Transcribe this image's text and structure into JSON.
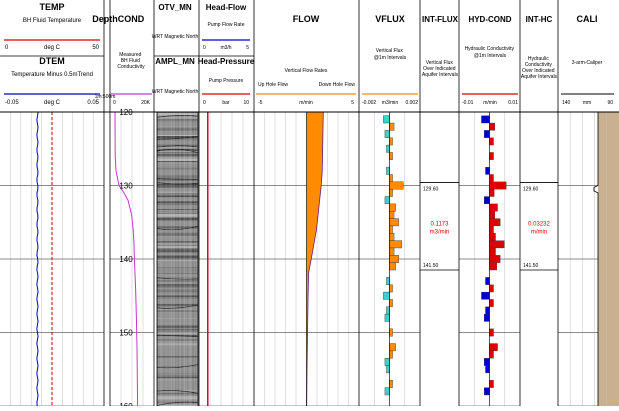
{
  "columns": {
    "temp": {
      "title": "TEMP",
      "subtitle": "BH Fluid Temperature",
      "min": "0",
      "unit": "deg C",
      "max": "50",
      "title2": "DTEM",
      "subtitle2": "Temperature Minus 0.5mTrend",
      "min2": "-0.05",
      "unit2": "deg C",
      "max2": "0.05"
    },
    "depth": {
      "title": "Depth",
      "scale": "1m:500m"
    },
    "cond": {
      "title": "COND",
      "subtitle": "Measured BH Fluid Conductivity",
      "min": "0",
      "max": "20K"
    },
    "otv": {
      "title": "OTV_MN",
      "subtitle": "WRT Magnetic North",
      "title2": "AMPL_MN",
      "subtitle2": "WRT Magnetic North"
    },
    "head": {
      "title": "Head-Flow",
      "subtitle": "Pump Flow Rate",
      "min": "0",
      "unit": "m3/h",
      "max": "5",
      "title2": "Head-Pressure",
      "subtitle2": "Pump Pressure",
      "min2": "0",
      "unit2": "bar",
      "max2": "10"
    },
    "flow": {
      "title": "FLOW",
      "subtitle": "Vertical Flow Rates",
      "left_label": "Up Hole Flow",
      "right_label": "Down Hole Flow",
      "min": "-5",
      "unit": "m/min",
      "max": "5"
    },
    "vflux": {
      "title": "VFLUX",
      "subtitle": "Vertical Flux @1m Intervals",
      "min": "-0.002",
      "unit": "m3/min",
      "max": "0.002"
    },
    "intflux": {
      "title": "INT-FLUX",
      "subtitle": "Vertical Flux Over Indicated Aquifer Intervals",
      "top": "129.60",
      "value": "0.1173",
      "unit": "m3/min",
      "bottom": "141.50"
    },
    "hydcond": {
      "title": "HYD-COND",
      "subtitle": "Hydraulic Conductivity @1m Intervals",
      "min": "-0.01",
      "unit": "m/min",
      "max": "0.01"
    },
    "inthc": {
      "title": "INT-HC",
      "subtitle": "Hydraulic Conductivity Over Indicated Aquifer Intervals",
      "top": "129.60",
      "value": "0.03232",
      "unit": "m/min",
      "bottom": "141.50"
    },
    "cali": {
      "title": "CALI",
      "subtitle": "3-arm-Caliper",
      "min": "140",
      "unit": "mm",
      "max": "90"
    }
  },
  "colors": {
    "temp": "#0000cc",
    "dtem": "#cc0000",
    "cond": "#cc33cc",
    "flow": "#ff8c00",
    "vflux_pos": "#ff8c00",
    "vflux_neg": "#40d0c8",
    "hc_pos": "#dd0000",
    "hc_neg": "#0000cc",
    "cali": "#c8b090",
    "head_flow": "#0000cc",
    "head_pressure": "#dd0000",
    "interval_text": "#dd0000"
  },
  "chart_data": {
    "type": "line",
    "depth_range": [
      120,
      160
    ],
    "depth_ticks": [
      "120",
      "130",
      "140",
      "150",
      "160"
    ],
    "aquifer_interval": [
      129.6,
      141.5
    ],
    "cond_curve": {
      "depth": [
        120,
        126,
        128,
        130,
        131,
        132,
        134,
        136,
        138,
        140,
        142,
        144,
        148,
        152,
        160
      ],
      "value": [
        1500,
        1600,
        2000,
        3500,
        6000,
        8000,
        9800,
        10600,
        11000,
        11200,
        11500,
        11800,
        12200,
        12500,
        12800
      ]
    },
    "flow_curve": {
      "depth": [
        120,
        124,
        128,
        130,
        132,
        134,
        136,
        138,
        140,
        141.5,
        142,
        145,
        150,
        155,
        160
      ],
      "value": [
        1.6,
        1.55,
        1.5,
        1.4,
        1.25,
        1.1,
        0.95,
        0.7,
        0.45,
        0.25,
        0.2,
        0.15,
        0.1,
        0.05,
        0.02
      ]
    },
    "vflux_bars": [
      {
        "depth": 121,
        "value": -0.0004
      },
      {
        "depth": 122,
        "value": 0.0003
      },
      {
        "depth": 123,
        "value": -0.0003
      },
      {
        "depth": 124,
        "value": 0.0002
      },
      {
        "depth": 125,
        "value": -0.0002
      },
      {
        "depth": 126,
        "value": 0.0002
      },
      {
        "depth": 128,
        "value": -0.0002
      },
      {
        "depth": 129,
        "value": 0.0002
      },
      {
        "depth": 130,
        "value": 0.0009
      },
      {
        "depth": 131,
        "value": 0.0002
      },
      {
        "depth": 132,
        "value": -0.0003
      },
      {
        "depth": 133,
        "value": 0.0004
      },
      {
        "depth": 134,
        "value": 0.0003
      },
      {
        "depth": 135,
        "value": 0.0006
      },
      {
        "depth": 136,
        "value": 0.0002
      },
      {
        "depth": 137,
        "value": 0.0003
      },
      {
        "depth": 138,
        "value": 0.0008
      },
      {
        "depth": 139,
        "value": 0.0003
      },
      {
        "depth": 140,
        "value": 0.0006
      },
      {
        "depth": 141,
        "value": 0.0004
      },
      {
        "depth": 143,
        "value": -0.0002
      },
      {
        "depth": 144,
        "value": 0.0002
      },
      {
        "depth": 145,
        "value": -0.0004
      },
      {
        "depth": 146,
        "value": 0.0002
      },
      {
        "depth": 147,
        "value": -0.0002
      },
      {
        "depth": 148,
        "value": -0.0003
      },
      {
        "depth": 150,
        "value": 0.0002
      },
      {
        "depth": 152,
        "value": 0.0004
      },
      {
        "depth": 153,
        "value": 0.0002
      },
      {
        "depth": 154,
        "value": -0.0003
      },
      {
        "depth": 155,
        "value": -0.0002
      },
      {
        "depth": 157,
        "value": 0.0002
      },
      {
        "depth": 158,
        "value": -0.0003
      }
    ],
    "hc_bars": [
      {
        "depth": 121,
        "value": -0.0012
      },
      {
        "depth": 122,
        "value": 0.0008
      },
      {
        "depth": 123,
        "value": -0.0008
      },
      {
        "depth": 124,
        "value": 0.0006
      },
      {
        "depth": 126,
        "value": 0.0006
      },
      {
        "depth": 128,
        "value": -0.0006
      },
      {
        "depth": 129,
        "value": 0.0006
      },
      {
        "depth": 130,
        "value": 0.0025
      },
      {
        "depth": 131,
        "value": 0.0007
      },
      {
        "depth": 132,
        "value": -0.0008
      },
      {
        "depth": 133,
        "value": 0.0012
      },
      {
        "depth": 134,
        "value": 0.0008
      },
      {
        "depth": 135,
        "value": 0.0016
      },
      {
        "depth": 136,
        "value": 0.0006
      },
      {
        "depth": 137,
        "value": 0.0009
      },
      {
        "depth": 138,
        "value": 0.0022
      },
      {
        "depth": 139,
        "value": 0.0009
      },
      {
        "depth": 140,
        "value": 0.0016
      },
      {
        "depth": 141,
        "value": 0.0011
      },
      {
        "depth": 143,
        "value": -0.0006
      },
      {
        "depth": 144,
        "value": 0.0006
      },
      {
        "depth": 145,
        "value": -0.0012
      },
      {
        "depth": 146,
        "value": 0.0006
      },
      {
        "depth": 147,
        "value": -0.0006
      },
      {
        "depth": 148,
        "value": -0.0008
      },
      {
        "depth": 150,
        "value": 0.0006
      },
      {
        "depth": 152,
        "value": 0.0012
      },
      {
        "depth": 153,
        "value": 0.0006
      },
      {
        "depth": 154,
        "value": -0.0008
      },
      {
        "depth": 155,
        "value": -0.0006
      },
      {
        "depth": 157,
        "value": 0.0006
      },
      {
        "depth": 158,
        "value": -0.0008
      }
    ],
    "head_flow_value": 0.8,
    "head_pressure_value": 1.6,
    "temp_value": 18,
    "dtem_value": 0
  }
}
